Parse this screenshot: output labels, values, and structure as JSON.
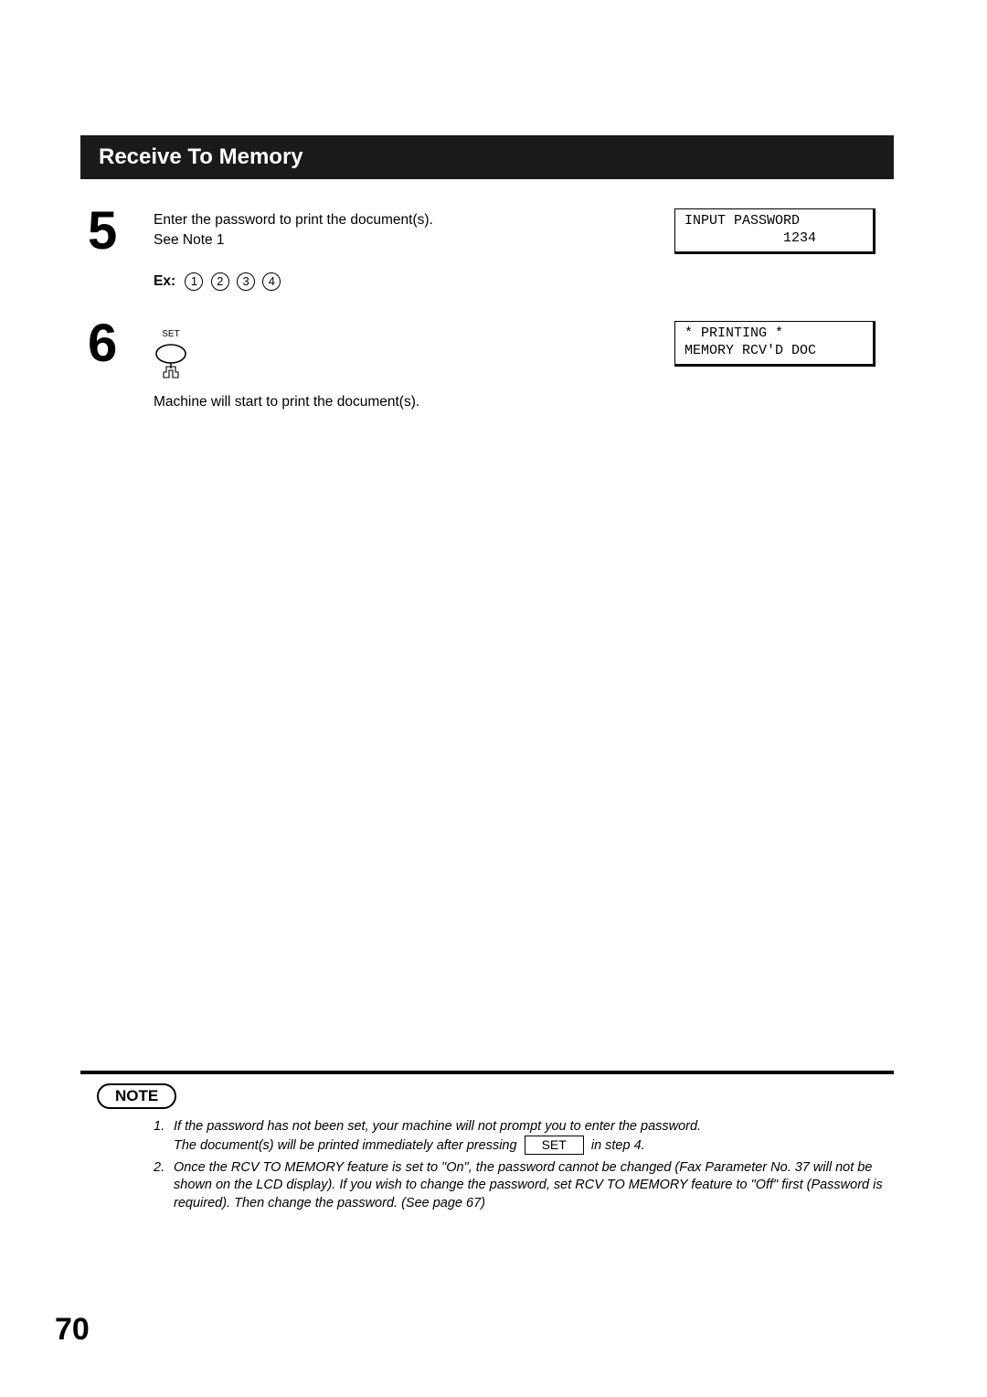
{
  "header": {
    "title": "Receive To Memory"
  },
  "step5": {
    "number": "5",
    "line1": "Enter the password to print the document(s).",
    "line2": "See Note 1",
    "ex_label": "Ex:",
    "ex_digits": [
      "1",
      "2",
      "3",
      "4"
    ],
    "lcd_line1": "INPUT PASSWORD",
    "lcd_line2": "            1234"
  },
  "step6": {
    "number": "6",
    "button_label": "SET",
    "after_text": "Machine will start to print the document(s).",
    "lcd_line1": "* PRINTING *",
    "lcd_line2": "MEMORY RCV'D DOC"
  },
  "note": {
    "badge": "NOTE",
    "items": [
      {
        "num": "1.",
        "text_before": "If the password has not been set, your machine will not prompt you to enter the password.\nThe document(s) will be printed immediately after pressing ",
        "key": "SET",
        "text_after": " in step 4."
      },
      {
        "num": "2.",
        "text_before": "Once the RCV TO MEMORY feature is set to \"On\",  the password cannot be changed (Fax Parameter No.  37 will not be shown on the LCD display).  If you wish to change the password, set RCV TO MEMORY feature to \"Off\" first (Password is required).  Then change the password.  (See page 67)",
        "key": "",
        "text_after": ""
      }
    ]
  },
  "page_number": "70",
  "colors": {
    "header_bg": "#1a1a1a",
    "header_text": "#ffffff",
    "body_text": "#000000",
    "border": "#000000",
    "background": "#ffffff"
  },
  "typography": {
    "body_fontsize_pt": 12,
    "header_fontsize_pt": 18,
    "stepnum_fontsize_pt": 44,
    "lcd_font": "Courier New",
    "note_fontsize_pt": 11
  }
}
